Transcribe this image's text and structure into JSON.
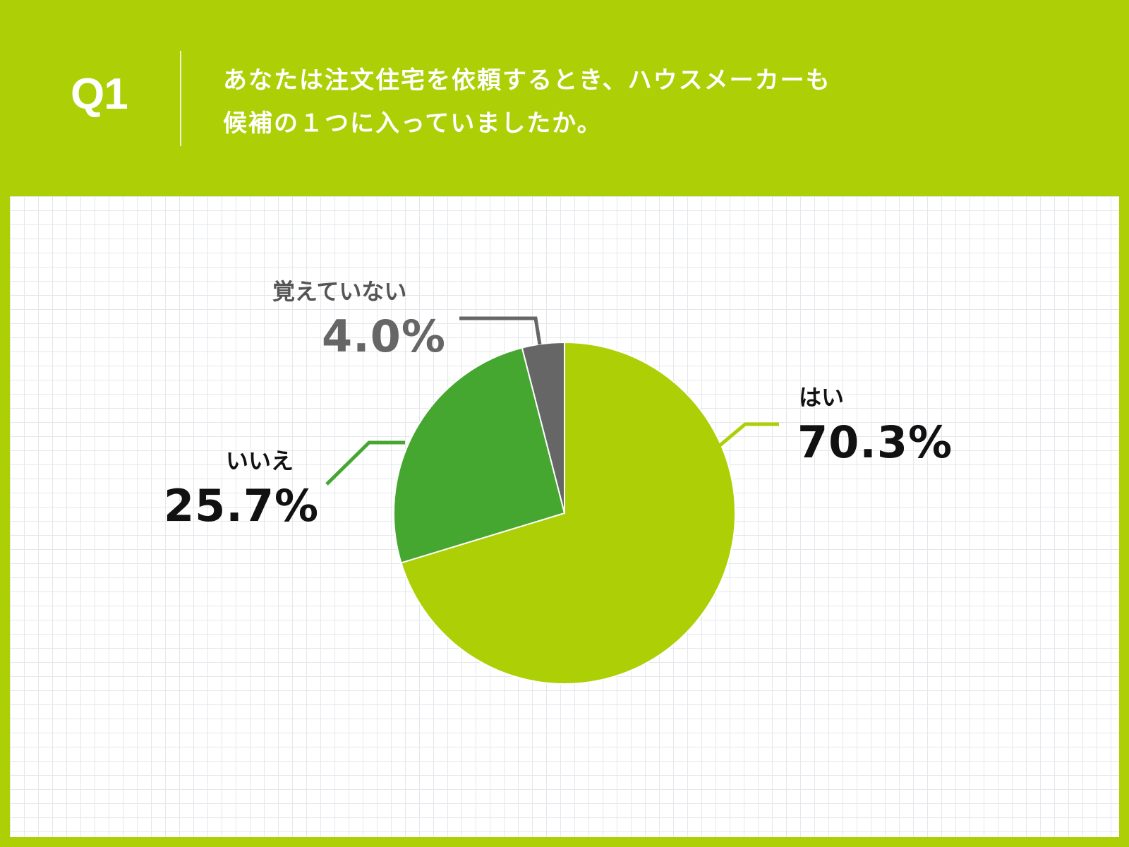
{
  "header": {
    "q_label": "Q1",
    "question_line1": "あなたは注文住宅を依頼するとき、ハウスメーカーも",
    "question_line2": "候補の１つに入っていましたか。"
  },
  "colors": {
    "brand": "#accf06",
    "yes": "#accf06",
    "no": "#45a730",
    "dont_know": "#666666"
  },
  "chart_data": {
    "type": "pie",
    "title": "",
    "slices": [
      {
        "label": "はい",
        "value": 70.3,
        "value_label": "70.3%",
        "color": "#accf06"
      },
      {
        "label": "いいえ",
        "value": 25.7,
        "value_label": "25.7%",
        "color": "#45a730"
      },
      {
        "label": "覚えていない",
        "value": 4.0,
        "value_label": "4.0%",
        "color": "#666666"
      }
    ]
  }
}
